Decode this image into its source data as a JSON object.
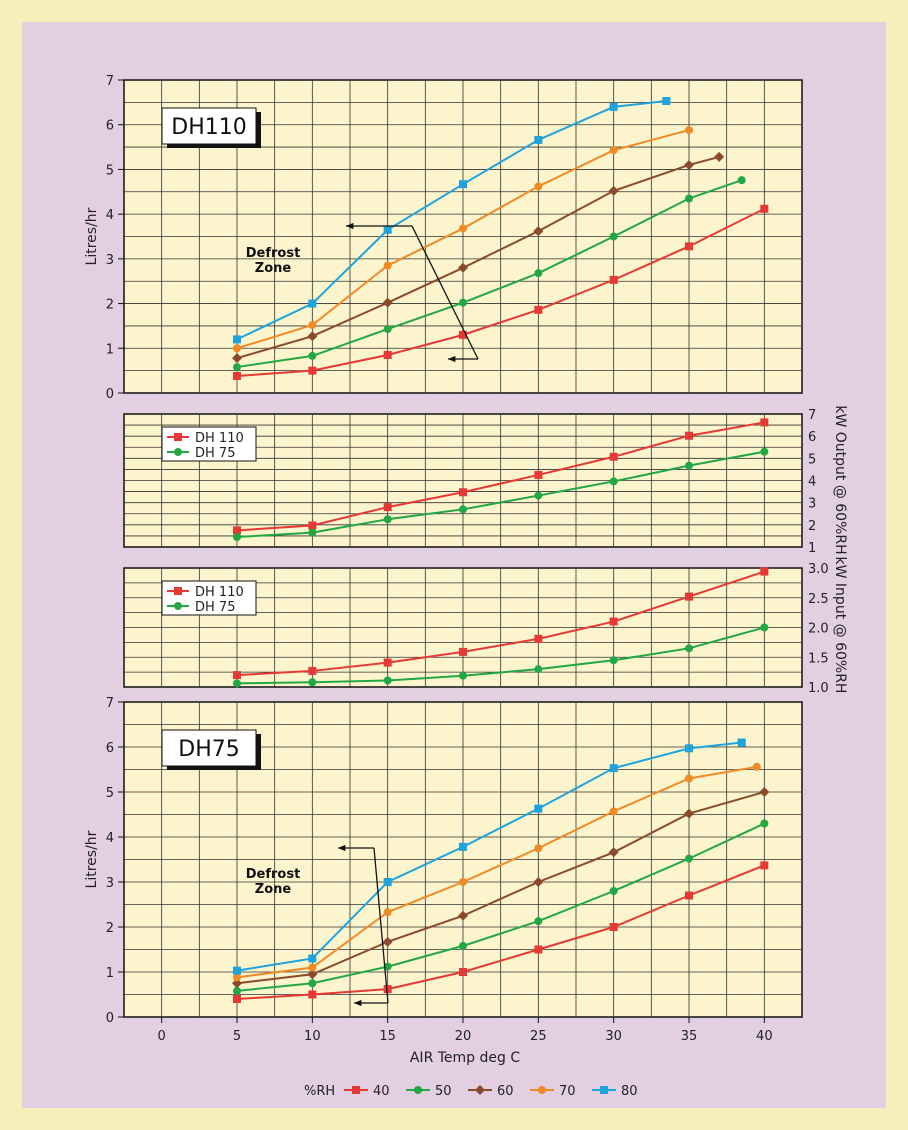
{
  "colors": {
    "page_bg": "#f6eebb",
    "panel_bg": "#e2cfe2",
    "plot_bg": "#fbf4cc",
    "grid": "#333333",
    "rh40": "#e53935",
    "rh50": "#22a745",
    "rh60": "#8b4a2b",
    "rh70": "#f08a24",
    "rh80": "#1ea3dd"
  },
  "x_axis": {
    "label": "AIR Temp deg C",
    "ticks": [
      "0",
      "5",
      "10",
      "15",
      "20",
      "25",
      "30",
      "35",
      "40"
    ]
  },
  "rh_legend": {
    "title": "%RH",
    "items": [
      {
        "label": "40",
        "marker": "square",
        "color": "#e53935"
      },
      {
        "label": "50",
        "marker": "circle",
        "color": "#22a745"
      },
      {
        "label": "60",
        "marker": "diamond",
        "color": "#8b4a2b"
      },
      {
        "label": "70",
        "marker": "circle",
        "color": "#f08a24"
      },
      {
        "label": "80",
        "marker": "square",
        "color": "#1ea3dd"
      }
    ]
  },
  "chart_data": [
    {
      "type": "line",
      "title": "DH110",
      "ylabel": "Litres/hr",
      "xlim": [
        -2.5,
        42.5
      ],
      "ylim": [
        0,
        7
      ],
      "y_ticks": [
        "0",
        "1",
        "2",
        "3",
        "4",
        "5",
        "6",
        "7"
      ],
      "annotation": "Defrost Zone",
      "series": [
        {
          "name": "40",
          "marker": "square",
          "color": "#e53935",
          "x": [
            5,
            10,
            15,
            20,
            25,
            30,
            35,
            40
          ],
          "y": [
            0.38,
            0.5,
            0.85,
            1.3,
            1.86,
            2.53,
            3.28,
            4.12
          ]
        },
        {
          "name": "50",
          "marker": "circle",
          "color": "#22a745",
          "x": [
            5,
            10,
            15,
            20,
            25,
            30,
            35,
            38.5
          ],
          "y": [
            0.58,
            0.83,
            1.43,
            2.02,
            2.68,
            3.5,
            4.35,
            4.76
          ]
        },
        {
          "name": "60",
          "marker": "diamond",
          "color": "#8b4a2b",
          "x": [
            5,
            10,
            15,
            20,
            25,
            30,
            35,
            37
          ],
          "y": [
            0.78,
            1.27,
            2.02,
            2.8,
            3.62,
            4.52,
            5.1,
            5.28
          ]
        },
        {
          "name": "70",
          "marker": "circle",
          "color": "#f08a24",
          "x": [
            5,
            10,
            15,
            20,
            25,
            30,
            35
          ],
          "y": [
            1.0,
            1.52,
            2.85,
            3.68,
            4.62,
            5.43,
            5.88
          ]
        },
        {
          "name": "80",
          "marker": "square",
          "color": "#1ea3dd",
          "x": [
            5,
            10,
            15,
            20,
            25,
            30,
            33.5
          ],
          "y": [
            1.2,
            2.0,
            3.65,
            4.67,
            5.66,
            6.4,
            6.53
          ]
        }
      ]
    },
    {
      "type": "line",
      "ylabel": "kW Output @ 60%RH",
      "xlim": [
        -2.5,
        42.5
      ],
      "ylim": [
        1,
        7
      ],
      "y_ticks": [
        "1",
        "2",
        "3",
        "4",
        "5",
        "6",
        "7"
      ],
      "legend_placement": "top-left",
      "series": [
        {
          "name": "DH 110",
          "marker": "square",
          "color": "#e53935",
          "x": [
            5,
            10,
            15,
            20,
            25,
            30,
            35,
            40
          ],
          "y": [
            1.75,
            1.97,
            2.8,
            3.47,
            4.25,
            5.07,
            6.02,
            6.62
          ]
        },
        {
          "name": "DH 75",
          "marker": "circle",
          "color": "#22a745",
          "x": [
            5,
            10,
            15,
            20,
            25,
            30,
            35,
            40
          ],
          "y": [
            1.45,
            1.65,
            2.25,
            2.7,
            3.32,
            3.96,
            4.67,
            5.3
          ]
        }
      ]
    },
    {
      "type": "line",
      "ylabel": "kW Input @ 60%RH",
      "xlim": [
        -2.5,
        42.5
      ],
      "ylim": [
        1.0,
        3.0
      ],
      "y_ticks": [
        "1.0",
        "1.5",
        "2.0",
        "2.5",
        "3.0"
      ],
      "legend_placement": "top-left",
      "series": [
        {
          "name": "DH 110",
          "marker": "square",
          "color": "#e53935",
          "x": [
            5,
            10,
            15,
            20,
            25,
            30,
            35,
            40
          ],
          "y": [
            1.2,
            1.27,
            1.41,
            1.59,
            1.81,
            2.1,
            2.52,
            2.94
          ]
        },
        {
          "name": "DH 75",
          "marker": "circle",
          "color": "#22a745",
          "x": [
            5,
            10,
            15,
            20,
            25,
            30,
            35,
            40
          ],
          "y": [
            1.06,
            1.08,
            1.11,
            1.19,
            1.3,
            1.45,
            1.65,
            2.0
          ]
        }
      ]
    },
    {
      "type": "line",
      "title": "DH75",
      "ylabel": "Litres/hr",
      "xlim": [
        -2.5,
        42.5
      ],
      "ylim": [
        0,
        7
      ],
      "y_ticks": [
        "0",
        "1",
        "2",
        "3",
        "4",
        "5",
        "6",
        "7"
      ],
      "annotation": "Defrost Zone",
      "series": [
        {
          "name": "40",
          "marker": "square",
          "color": "#e53935",
          "x": [
            5,
            10,
            15,
            20,
            25,
            30,
            35,
            40
          ],
          "y": [
            0.4,
            0.5,
            0.62,
            1.0,
            1.5,
            2.0,
            2.7,
            3.37
          ]
        },
        {
          "name": "50",
          "marker": "circle",
          "color": "#22a745",
          "x": [
            5,
            10,
            15,
            20,
            25,
            30,
            35,
            40
          ],
          "y": [
            0.58,
            0.75,
            1.12,
            1.58,
            2.13,
            2.8,
            3.52,
            4.3
          ]
        },
        {
          "name": "60",
          "marker": "diamond",
          "color": "#8b4a2b",
          "x": [
            5,
            10,
            15,
            20,
            25,
            30,
            35,
            40
          ],
          "y": [
            0.75,
            0.95,
            1.67,
            2.25,
            3.0,
            3.66,
            4.52,
            5.0
          ]
        },
        {
          "name": "70",
          "marker": "circle",
          "color": "#f08a24",
          "x": [
            5,
            10,
            15,
            20,
            25,
            30,
            35,
            39.5
          ],
          "y": [
            0.88,
            1.1,
            2.33,
            3.0,
            3.75,
            4.57,
            5.3,
            5.56
          ]
        },
        {
          "name": "80",
          "marker": "square",
          "color": "#1ea3dd",
          "x": [
            5,
            10,
            15,
            20,
            25,
            30,
            35,
            38.5
          ],
          "y": [
            1.03,
            1.3,
            3.0,
            3.78,
            4.63,
            5.53,
            5.97,
            6.1
          ]
        }
      ]
    }
  ]
}
